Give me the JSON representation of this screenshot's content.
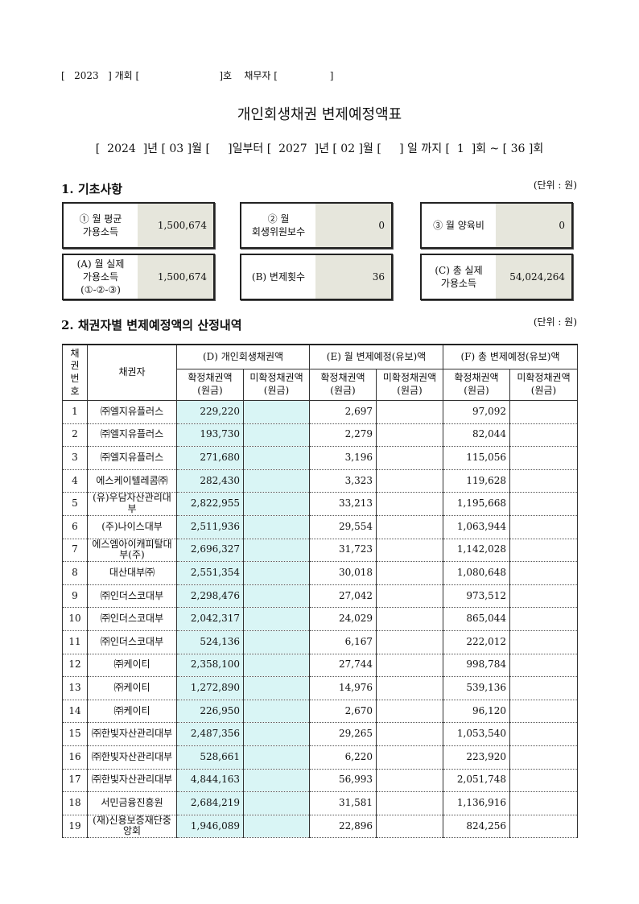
{
  "header": {
    "case_line": "[   2023   ] 개회 [                          ]호    채무자 [                 ]",
    "title": "개인회생채권 변제예정액표",
    "period": "[  2024  ]년 [ 03 ]월 [     ]일부터 [  2027  ]년 [ 02 ]월 [     ] 일 까지 [  1  ]회 ~ [ 36 ]회"
  },
  "section1": {
    "title": "1. 기초사항",
    "unit": "(단위 : 원)",
    "boxes": [
      {
        "label": "① 월 평균\n가용소득",
        "value": "1,500,674"
      },
      {
        "label": "② 월\n회생위원보수",
        "value": "0"
      },
      {
        "label": "③ 월 양육비",
        "value": "0"
      },
      {
        "label": "(A) 월 실제\n가용소득\n(①-②-③)",
        "value": "1,500,674"
      },
      {
        "label": "(B) 변제횟수",
        "value": "36"
      },
      {
        "label": "(C) 총 실제\n가용소득",
        "value": "54,024,264"
      }
    ]
  },
  "section2": {
    "title": "2. 채권자별 변제예정액의 산정내역",
    "unit": "(단위 : 원)",
    "table": {
      "header": [
        "채권\n번호",
        "채권자",
        "(D) 개인회생채권액",
        "(E) 월 변제예정(유보)액",
        "(F) 총 변제예정(유보)액"
      ],
      "subheader": [
        "확정채권액\n(원금)",
        "미확정채권액\n(원금)",
        "확정채권액\n(원금)",
        "미확정채권액\n(원금)",
        "확정채권액\n(원금)",
        "미확정채권액\n(원금)"
      ],
      "rows": [
        [
          "1",
          "㈜엘지유플러스",
          "229,220",
          "2,697",
          "97,092"
        ],
        [
          "2",
          "㈜엘지유플러스",
          "193,730",
          "2,279",
          "82,044"
        ],
        [
          "3",
          "㈜엘지유플러스",
          "271,680",
          "3,196",
          "115,056"
        ],
        [
          "4",
          "에스케이텔레콤㈜",
          "282,430",
          "3,323",
          "119,628"
        ],
        [
          "5",
          "(유)우담자산관리대부",
          "2,822,955",
          "33,213",
          "1,195,668"
        ],
        [
          "6",
          "(주)나이스대부",
          "2,511,936",
          "29,554",
          "1,063,944"
        ],
        [
          "7",
          "에스엠아이캐피탈대부(주)",
          "2,696,327",
          "31,723",
          "1,142,028"
        ],
        [
          "8",
          "대산대부㈜",
          "2,551,354",
          "30,018",
          "1,080,648"
        ],
        [
          "9",
          "㈜인더스코대부",
          "2,298,476",
          "27,042",
          "973,512"
        ],
        [
          "10",
          "㈜인더스코대부",
          "2,042,317",
          "24,029",
          "865,044"
        ],
        [
          "11",
          "㈜인더스코대부",
          "524,136",
          "6,167",
          "222,012"
        ],
        [
          "12",
          "㈜케이티",
          "2,358,100",
          "27,744",
          "998,784"
        ],
        [
          "13",
          "㈜케이티",
          "1,272,890",
          "14,976",
          "539,136"
        ],
        [
          "14",
          "㈜케이티",
          "226,950",
          "2,670",
          "96,120"
        ],
        [
          "15",
          "㈜한빛자산관리대부",
          "2,487,356",
          "29,265",
          "1,053,540"
        ],
        [
          "16",
          "㈜한빛자산관리대부",
          "528,661",
          "6,220",
          "223,920"
        ],
        [
          "17",
          "㈜한빛자산관리대부",
          "4,844,163",
          "56,993",
          "2,051,748"
        ],
        [
          "18",
          "서민금융진흥원",
          "2,684,219",
          "31,581",
          "1,136,916"
        ],
        [
          "19",
          "(재)신용보증재단중앙회",
          "1,946,089",
          "22,896",
          "824,256"
        ]
      ]
    }
  }
}
